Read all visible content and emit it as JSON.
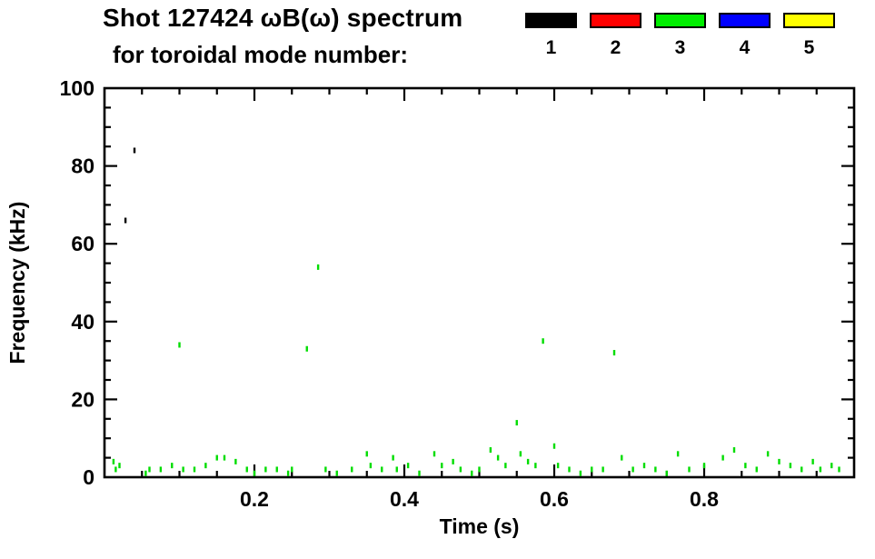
{
  "chart": {
    "title_line1": "Shot 127424 ωB(ω) spectrum",
    "title_line2": "for toroidal mode number:"
  },
  "legend": {
    "items": [
      {
        "label": "1",
        "color": "#000000"
      },
      {
        "label": "2",
        "color": "#ff0000"
      },
      {
        "label": "3",
        "color": "#00ee00"
      },
      {
        "label": "4",
        "color": "#0000ff"
      },
      {
        "label": "5",
        "color": "#ffff00"
      }
    ]
  },
  "chart_data": {
    "type": "scatter",
    "title": "Shot 127424 ωB(ω) spectrum for toroidal mode number",
    "xlabel": "Time (s)",
    "ylabel": "Frequency (kHz)",
    "xlim": [
      0,
      1.0
    ],
    "ylim": [
      0,
      100
    ],
    "xticks": [
      0.2,
      0.4,
      0.6,
      0.8
    ],
    "yticks": [
      0,
      20,
      40,
      60,
      80,
      100
    ],
    "x_minor_step": 0.05,
    "y_minor_step": 5,
    "grid": false,
    "legend_position": "top-right",
    "series": [
      {
        "name": "n=1",
        "color": "#000000",
        "points": [
          [
            0.028,
            66
          ],
          [
            0.04,
            84
          ]
        ]
      },
      {
        "name": "n=2",
        "color": "#ff0000",
        "points": []
      },
      {
        "name": "n=3",
        "color": "#00dd00",
        "points": [
          [
            0.012,
            4
          ],
          [
            0.015,
            2
          ],
          [
            0.02,
            3
          ],
          [
            0.055,
            1
          ],
          [
            0.06,
            2
          ],
          [
            0.075,
            2
          ],
          [
            0.09,
            3
          ],
          [
            0.1,
            34
          ],
          [
            0.105,
            2
          ],
          [
            0.12,
            2
          ],
          [
            0.135,
            3
          ],
          [
            0.15,
            5
          ],
          [
            0.16,
            5
          ],
          [
            0.175,
            4
          ],
          [
            0.19,
            2
          ],
          [
            0.2,
            1
          ],
          [
            0.215,
            2
          ],
          [
            0.23,
            2
          ],
          [
            0.245,
            1
          ],
          [
            0.25,
            2
          ],
          [
            0.27,
            33
          ],
          [
            0.285,
            54
          ],
          [
            0.295,
            2
          ],
          [
            0.31,
            1
          ],
          [
            0.33,
            2
          ],
          [
            0.35,
            6
          ],
          [
            0.355,
            3
          ],
          [
            0.37,
            2
          ],
          [
            0.385,
            5
          ],
          [
            0.39,
            2
          ],
          [
            0.405,
            3
          ],
          [
            0.42,
            1
          ],
          [
            0.44,
            6
          ],
          [
            0.45,
            3
          ],
          [
            0.465,
            4
          ],
          [
            0.475,
            2
          ],
          [
            0.49,
            1
          ],
          [
            0.5,
            2
          ],
          [
            0.515,
            7
          ],
          [
            0.525,
            5
          ],
          [
            0.535,
            3
          ],
          [
            0.55,
            14
          ],
          [
            0.555,
            6
          ],
          [
            0.565,
            4
          ],
          [
            0.575,
            3
          ],
          [
            0.585,
            35
          ],
          [
            0.6,
            8
          ],
          [
            0.605,
            3
          ],
          [
            0.62,
            2
          ],
          [
            0.635,
            1
          ],
          [
            0.65,
            2
          ],
          [
            0.665,
            2
          ],
          [
            0.68,
            32
          ],
          [
            0.69,
            5
          ],
          [
            0.705,
            2
          ],
          [
            0.72,
            3
          ],
          [
            0.735,
            2
          ],
          [
            0.75,
            1
          ],
          [
            0.765,
            6
          ],
          [
            0.78,
            2
          ],
          [
            0.8,
            3
          ],
          [
            0.825,
            5
          ],
          [
            0.84,
            7
          ],
          [
            0.855,
            3
          ],
          [
            0.87,
            2
          ],
          [
            0.885,
            6
          ],
          [
            0.9,
            4
          ],
          [
            0.915,
            3
          ],
          [
            0.93,
            2
          ],
          [
            0.945,
            4
          ],
          [
            0.955,
            2
          ],
          [
            0.97,
            3
          ],
          [
            0.98,
            2
          ]
        ]
      },
      {
        "name": "n=4",
        "color": "#0000ff",
        "points": []
      },
      {
        "name": "n=5",
        "color": "#ffff00",
        "points": []
      }
    ]
  }
}
